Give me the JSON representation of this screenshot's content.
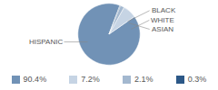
{
  "chart_data": {
    "type": "pie",
    "categories": [
      "HISPANIC",
      "WHITE",
      "ASIAN",
      "BLACK"
    ],
    "values": [
      90.4,
      7.2,
      2.1,
      0.3
    ],
    "value_labels": [
      "90.4%",
      "7.2%",
      "2.1%",
      "0.3%"
    ],
    "colors": [
      "#7192b6",
      "#c6d4e4",
      "#a3b8cf",
      "#2c5887"
    ],
    "legend": "bottom"
  }
}
